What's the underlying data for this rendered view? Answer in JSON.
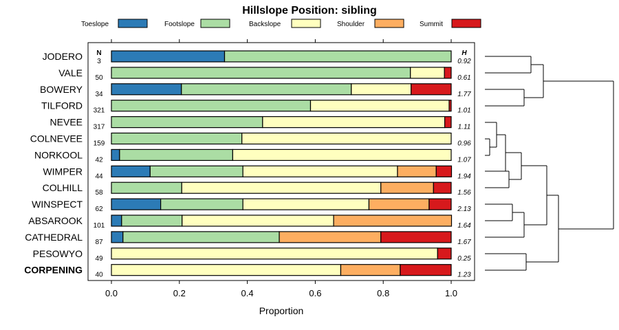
{
  "chart_data": {
    "type": "bar",
    "orientation": "horizontal",
    "stacked": true,
    "title": "Hillslope Position: sibling",
    "xlabel": "Proportion",
    "ylabel": "",
    "xlim": [
      0,
      1
    ],
    "xticks": [
      "0.0",
      "0.2",
      "0.4",
      "0.6",
      "0.8",
      "1.0"
    ],
    "n_header": "N",
    "h_header": "H",
    "legend_position": "top",
    "series": [
      {
        "name": "Toeslope",
        "color": "#2c7bb6"
      },
      {
        "name": "Footslope",
        "color": "#abdda4"
      },
      {
        "name": "Backslope",
        "color": "#ffffbf"
      },
      {
        "name": "Shoulder",
        "color": "#fdae61"
      },
      {
        "name": "Summit",
        "color": "#d7191c"
      }
    ],
    "rows": [
      {
        "label": "JODERO",
        "n": "3",
        "h": "0.92",
        "values": [
          0.333,
          0.667,
          0,
          0,
          0
        ],
        "bold": false
      },
      {
        "label": "VALE",
        "n": "50",
        "h": "0.61",
        "values": [
          0,
          0.88,
          0.1,
          0,
          0.02
        ],
        "bold": false
      },
      {
        "label": "BOWERY",
        "n": "34",
        "h": "1.77",
        "values": [
          0.206,
          0.5,
          0.176,
          0,
          0.118
        ],
        "bold": false
      },
      {
        "label": "TILFORD",
        "n": "321",
        "h": "1.01",
        "values": [
          0,
          0.586,
          0.408,
          0,
          0.006
        ],
        "bold": false
      },
      {
        "label": "NEVEE",
        "n": "317",
        "h": "1.11",
        "values": [
          0,
          0.445,
          0.536,
          0,
          0.019
        ],
        "bold": false
      },
      {
        "label": "COLNEVEE",
        "n": "159",
        "h": "0.96",
        "values": [
          0,
          0.384,
          0.616,
          0,
          0
        ],
        "bold": false
      },
      {
        "label": "NORKOOL",
        "n": "42",
        "h": "1.07",
        "values": [
          0.024,
          0.333,
          0.643,
          0,
          0
        ],
        "bold": false
      },
      {
        "label": "WIMPER",
        "n": "44",
        "h": "1.94",
        "values": [
          0.114,
          0.273,
          0.455,
          0.114,
          0.045
        ],
        "bold": false
      },
      {
        "label": "COLHILL",
        "n": "58",
        "h": "1.56",
        "values": [
          0,
          0.207,
          0.586,
          0.155,
          0.052
        ],
        "bold": false
      },
      {
        "label": "WINSPECT",
        "n": "62",
        "h": "2.13",
        "values": [
          0.145,
          0.242,
          0.371,
          0.177,
          0.065
        ],
        "bold": false
      },
      {
        "label": "ABSAROOK",
        "n": "101",
        "h": "1.64",
        "values": [
          0.03,
          0.178,
          0.446,
          0.347,
          0
        ],
        "bold": false
      },
      {
        "label": "CATHEDRAL",
        "n": "87",
        "h": "1.67",
        "values": [
          0.034,
          0.46,
          0,
          0.299,
          0.207
        ],
        "bold": false
      },
      {
        "label": "PESOWYO",
        "n": "49",
        "h": "0.25",
        "values": [
          0,
          0,
          0.96,
          0,
          0.04
        ],
        "bold": false
      },
      {
        "label": "CORPENING",
        "n": "40",
        "h": "1.23",
        "values": [
          0,
          0,
          0.675,
          0.175,
          0.15
        ],
        "bold": true
      }
    ]
  }
}
